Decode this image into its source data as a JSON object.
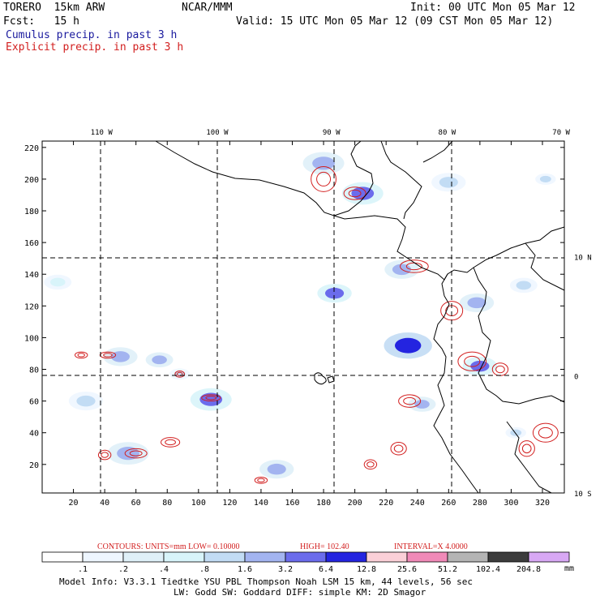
{
  "header": {
    "model": "TORERO  15km ARW",
    "org": "NCAR/MMM",
    "init": "Init: 00 UTC Mon 05 Mar 12",
    "fcst": "Fcst:   15 h",
    "valid": "Valid: 15 UTC Mon 05 Mar 12 (09 CST Mon 05 Mar 12)",
    "cumulus_label": "Cumulus precip. in past 3 h",
    "explicit_label": "Explicit precip. in past 3 h"
  },
  "colors": {
    "cumulus": "#1a1a9e",
    "explicit": "#d21e1e",
    "coast": "#000000",
    "grid": "#000000"
  },
  "chart_data": {
    "type": "heatmap",
    "title": "Cumulus precip. in past 3 h / Explicit precip. in past 3 h",
    "x_grid_ticks": [
      20,
      40,
      60,
      80,
      100,
      120,
      140,
      160,
      180,
      200,
      220,
      240,
      260,
      280,
      300,
      320
    ],
    "y_grid_ticks": [
      20,
      40,
      60,
      80,
      100,
      120,
      140,
      160,
      180,
      200,
      220
    ],
    "xlim": [
      0,
      334
    ],
    "ylim": [
      2,
      224
    ],
    "longitude_labels": [
      {
        "label": "110 W",
        "x": 38
      },
      {
        "label": "100 W",
        "x": 112
      },
      {
        "label": "90 W",
        "x": 185
      },
      {
        "label": "80 W",
        "x": 259
      },
      {
        "label": "70 W",
        "x": 332
      }
    ],
    "latitude_labels": [
      {
        "label": "10 N",
        "y": 151
      },
      {
        "label": "0",
        "y": 76
      },
      {
        "label": "10 S",
        "y": 2
      }
    ],
    "contours_text": {
      "contours": "CONTOURS:  UNITS=mm  LOW= 0.10000",
      "high": "HIGH=  102.40",
      "interval": "INTERVAL=X  4.0000"
    },
    "colorbar": {
      "labels": [
        ".1",
        ".2",
        ".4",
        ".8",
        "1.6",
        "3.2",
        "6.4",
        "12.8",
        "25.6",
        "51.2",
        "102.4",
        "204.8"
      ],
      "unit": "mm",
      "colors": [
        "#ffffff",
        "#eef6ff",
        "#dff0f8",
        "#d8f4fa",
        "#c2dcf4",
        "#a3b4f0",
        "#6b6cec",
        "#2424e0",
        "#fbd0d8",
        "#f08ab8",
        "#b4b4b4",
        "#3c3c3c",
        "#d8a8f4"
      ]
    },
    "footer": {
      "line1": "Model Info: V3.3.1   Tiedtke YSU PBL  Thompson    Noah LSM  15 km,   44 levels,   56 sec",
      "line2": "LW: Godd SW: Goddard DIFF: simple KM: 2D Smagor"
    },
    "cumulus_cells": [
      {
        "x": 234,
        "y": 95,
        "r": 7,
        "level": 7
      },
      {
        "x": 205,
        "y": 191,
        "r": 6,
        "level": 6
      },
      {
        "x": 187,
        "y": 128,
        "r": 5,
        "level": 6
      },
      {
        "x": 108,
        "y": 61,
        "r": 6,
        "level": 6
      },
      {
        "x": 280,
        "y": 82,
        "r": 5,
        "level": 6
      },
      {
        "x": 278,
        "y": 122,
        "r": 5,
        "level": 5
      },
      {
        "x": 180,
        "y": 210,
        "r": 6,
        "level": 5
      },
      {
        "x": 322,
        "y": 200,
        "r": 3,
        "level": 4
      },
      {
        "x": 308,
        "y": 133,
        "r": 4,
        "level": 4
      },
      {
        "x": 150,
        "y": 17,
        "r": 5,
        "level": 5
      },
      {
        "x": 75,
        "y": 86,
        "r": 4,
        "level": 5
      },
      {
        "x": 50,
        "y": 88,
        "r": 5,
        "level": 5
      },
      {
        "x": 28,
        "y": 60,
        "r": 5,
        "level": 4
      },
      {
        "x": 55,
        "y": 27,
        "r": 6,
        "level": 5
      },
      {
        "x": 88,
        "y": 77,
        "r": 3,
        "level": 4
      },
      {
        "x": 243,
        "y": 58,
        "r": 4,
        "level": 5
      },
      {
        "x": 260,
        "y": 198,
        "r": 5,
        "level": 4
      },
      {
        "x": 230,
        "y": 143,
        "r": 5,
        "level": 5
      },
      {
        "x": 10,
        "y": 135,
        "r": 4,
        "level": 3
      },
      {
        "x": 303,
        "y": 40,
        "r": 3,
        "level": 4
      }
    ],
    "explicit_cells": [
      {
        "x": 180,
        "y": 200,
        "rx": 8,
        "ry": 8
      },
      {
        "x": 200,
        "y": 191,
        "rx": 7,
        "ry": 4
      },
      {
        "x": 238,
        "y": 145,
        "rx": 9,
        "ry": 4
      },
      {
        "x": 262,
        "y": 117,
        "rx": 7,
        "ry": 6
      },
      {
        "x": 275,
        "y": 85,
        "rx": 9,
        "ry": 6
      },
      {
        "x": 235,
        "y": 60,
        "rx": 7,
        "ry": 4
      },
      {
        "x": 82,
        "y": 34,
        "rx": 6,
        "ry": 3
      },
      {
        "x": 60,
        "y": 27,
        "rx": 7,
        "ry": 3
      },
      {
        "x": 40,
        "y": 26,
        "rx": 4,
        "ry": 3
      },
      {
        "x": 25,
        "y": 89,
        "rx": 4,
        "ry": 2
      },
      {
        "x": 42,
        "y": 89,
        "rx": 5,
        "ry": 2
      },
      {
        "x": 88,
        "y": 77,
        "rx": 3,
        "ry": 2
      },
      {
        "x": 108,
        "y": 62,
        "rx": 6,
        "ry": 2
      },
      {
        "x": 322,
        "y": 40,
        "rx": 8,
        "ry": 6
      },
      {
        "x": 310,
        "y": 30,
        "rx": 5,
        "ry": 5
      },
      {
        "x": 293,
        "y": 80,
        "rx": 5,
        "ry": 4
      },
      {
        "x": 210,
        "y": 20,
        "rx": 4,
        "ry": 3
      },
      {
        "x": 140,
        "y": 10,
        "rx": 4,
        "ry": 2
      },
      {
        "x": 228,
        "y": 30,
        "rx": 5,
        "ry": 4
      }
    ]
  }
}
